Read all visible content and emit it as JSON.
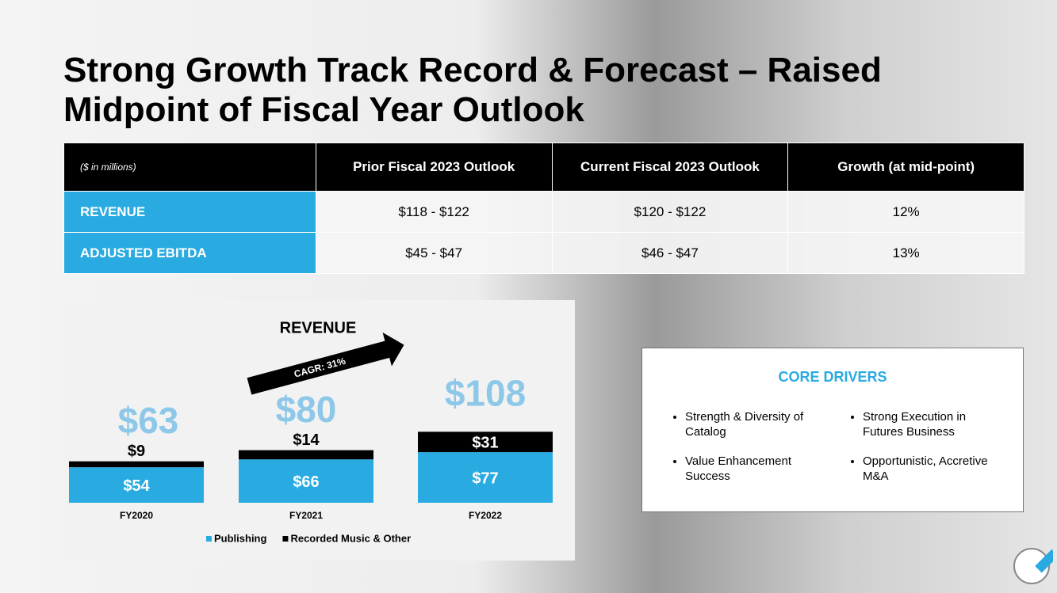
{
  "header": {
    "title_line1": "Strong Growth Track Record & Forecast – Raised",
    "title_line2": "Midpoint of Fiscal Year Outlook"
  },
  "table": {
    "columns": [
      "($ in millions)",
      "Prior Fiscal 2023 Outlook",
      "Current Fiscal 2023 Outlook",
      "Growth (at mid-point)"
    ],
    "rows": [
      [
        "REVENUE",
        "$118 - $122",
        "$120 - $122",
        "12%"
      ],
      [
        "ADJUSTED EBITDA",
        "$45 - $47",
        "$46 - $47",
        "13%"
      ]
    ]
  },
  "chart_data": {
    "type": "stacked-bar",
    "title": "REVENUE",
    "annotation": "CAGR: 31%",
    "categories": [
      "FY2020",
      "FY2021",
      "FY2022"
    ],
    "series": [
      {
        "name": "Publishing",
        "color": "#29abe2",
        "values": [
          54,
          66,
          77
        ],
        "value_labels": [
          "$54",
          "$66",
          "$77"
        ]
      },
      {
        "name": "Recorded Music & Other",
        "color": "#000000",
        "values": [
          9,
          14,
          31
        ],
        "value_labels": [
          "$9",
          "$14",
          "$31"
        ]
      }
    ],
    "totals": [
      63,
      80,
      108
    ],
    "total_labels": [
      "$63",
      "$80",
      "$108"
    ]
  },
  "core_drivers": {
    "title": "CORE DRIVERS",
    "items": [
      "Strength & Diversity of Catalog",
      "Strong Execution in Futures Business",
      "Value Enhancement Success",
      "Opportunistic, Accretive M&A"
    ]
  }
}
